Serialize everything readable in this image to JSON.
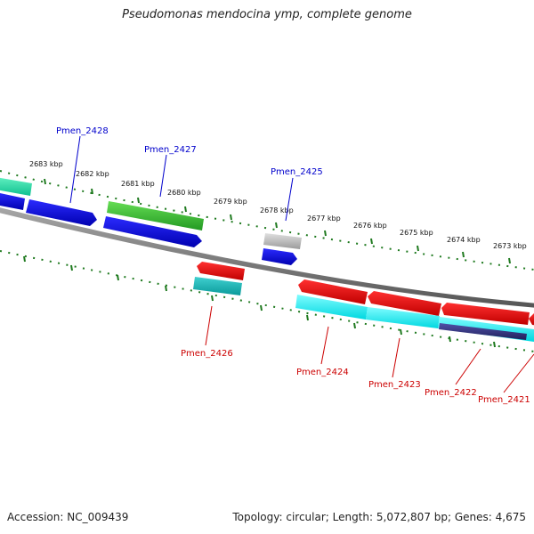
{
  "title": "Pseudomonas mendocina ymp, complete genome",
  "footer": {
    "accession": "Accession: NC_009439",
    "summary": "Topology: circular; Length: 5,072,807 bp; Genes: 4,675"
  },
  "colors": {
    "forward_label": "#0000cc",
    "reverse_label": "#cc0000",
    "backbone": "#7a7a7a",
    "ticks": "#1f7a1f"
  },
  "scale_labels": [
    "2683 kbp",
    "2682 kbp",
    "2681 kbp",
    "2680 kbp",
    "2679 kbp",
    "2678 kbp",
    "2677 kbp",
    "2676 kbp",
    "2675 kbp",
    "2674 kbp",
    "2673 kbp"
  ],
  "gene_labels": {
    "forward": [
      "Pmen_2428",
      "Pmen_2427",
      "Pmen_2425"
    ],
    "reverse": [
      "Pmen_2426",
      "Pmen_2424",
      "Pmen_2423",
      "Pmen_2422",
      "Pmen_2421"
    ]
  },
  "features": [
    {
      "name": "Pmen_2428",
      "strand": "forward",
      "track": "CDS",
      "color": "#0000dd"
    },
    {
      "name": "Pmen_2428",
      "strand": "forward",
      "track": "gene",
      "color": "#2de0a0"
    },
    {
      "name": "Pmen_2427",
      "strand": "forward",
      "track": "CDS",
      "color": "#0000dd"
    },
    {
      "name": "Pmen_2427",
      "strand": "forward",
      "track": "gene",
      "color": "#3fbf3f"
    },
    {
      "name": "Pmen_2425",
      "strand": "forward",
      "track": "CDS",
      "color": "#0000dd"
    },
    {
      "name": "Pmen_2425",
      "strand": "forward",
      "track": "gene",
      "color": "#b8b8b8"
    },
    {
      "name": "Pmen_2426",
      "strand": "reverse",
      "track": "CDS",
      "color": "#ee0000"
    },
    {
      "name": "Pmen_2426",
      "strand": "reverse",
      "track": "gene",
      "color": "#10b8b8"
    },
    {
      "name": "Pmen_2424",
      "strand": "reverse",
      "track": "CDS",
      "color": "#ee0000"
    },
    {
      "name": "Pmen_2424",
      "strand": "reverse",
      "track": "gene",
      "color": "#00ffff"
    },
    {
      "name": "Pmen_2423",
      "strand": "reverse",
      "track": "CDS",
      "color": "#ee0000"
    },
    {
      "name": "Pmen_2423",
      "strand": "reverse",
      "track": "gene",
      "color": "#00ffff"
    },
    {
      "name": "Pmen_2422",
      "strand": "reverse",
      "track": "CDS",
      "color": "#ee0000"
    },
    {
      "name": "Pmen_2422",
      "strand": "reverse",
      "track": "gene",
      "color": "#00ffff"
    },
    {
      "name": "Pmen_2421",
      "strand": "reverse",
      "track": "CDS",
      "color": "#ee0000"
    },
    {
      "name": "Pmen_2421",
      "strand": "reverse",
      "track": "gene",
      "color": "#2e2e80"
    }
  ]
}
